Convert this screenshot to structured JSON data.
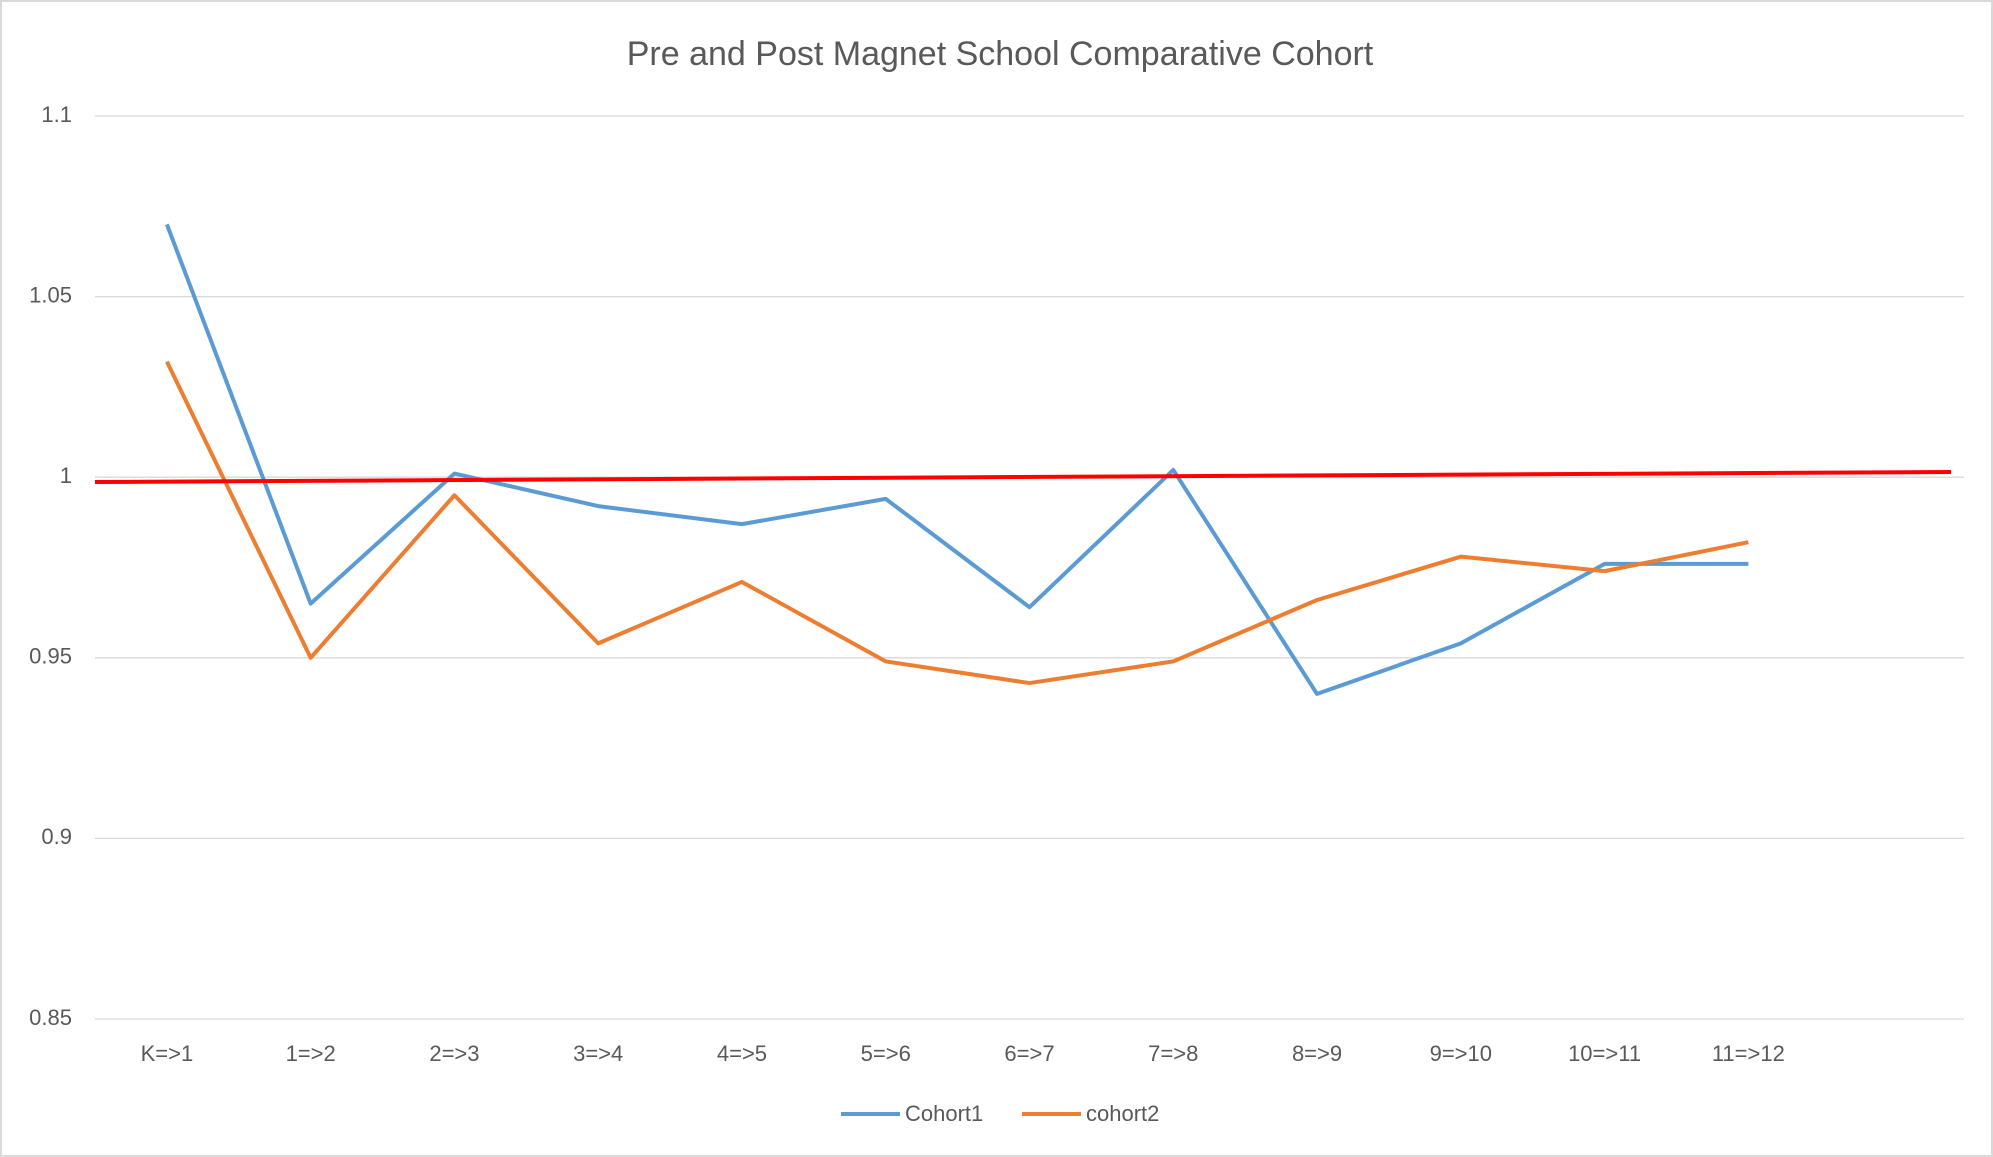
{
  "chart_data": {
    "type": "line",
    "title": "Pre and Post Magnet School Comparative Cohort",
    "categories": [
      "K=>1",
      "1=>2",
      "2=>3",
      "3=>4",
      "4=>5",
      "5=>6",
      "6=>7",
      "7=>8",
      "8=>9",
      "9=>10",
      "10=>11",
      "11=>12",
      null
    ],
    "series": [
      {
        "name": "Cohort1",
        "color": "#5b9bd5",
        "values": [
          1.07,
          0.965,
          1.001,
          0.992,
          0.987,
          0.994,
          0.964,
          1.002,
          0.94,
          0.954,
          0.976,
          0.976,
          null
        ]
      },
      {
        "name": "cohort2",
        "color": "#ed7d31",
        "values": [
          1.032,
          0.95,
          0.995,
          0.954,
          0.971,
          0.949,
          0.943,
          0.949,
          0.966,
          0.978,
          0.974,
          0.982,
          null
        ]
      }
    ],
    "ylim": [
      0.85,
      1.1
    ],
    "yticks": [
      0.85,
      0.9,
      0.95,
      1,
      1.05,
      1.1
    ],
    "grid": true,
    "legend": "bottom"
  }
}
